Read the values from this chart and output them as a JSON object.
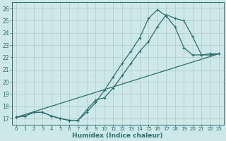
{
  "xlabel": "Humidex (Indice chaleur)",
  "bg_color": "#cce8e8",
  "grid_color": "#c8d8d8",
  "line_color": "#2d6e6e",
  "xlim": [
    -0.5,
    23.5
  ],
  "ylim": [
    16.5,
    26.5
  ],
  "xticks": [
    0,
    1,
    2,
    3,
    4,
    5,
    6,
    7,
    8,
    9,
    10,
    11,
    12,
    13,
    14,
    15,
    16,
    17,
    18,
    19,
    20,
    21,
    22,
    23
  ],
  "yticks": [
    17,
    18,
    19,
    20,
    21,
    22,
    23,
    24,
    25,
    26
  ],
  "line1_x": [
    0,
    1,
    2,
    3,
    4,
    5,
    6,
    7,
    8,
    9,
    10,
    11,
    12,
    13,
    14,
    15,
    16,
    17,
    18,
    19,
    20,
    21,
    22,
    23
  ],
  "line1_y": [
    17.1,
    17.2,
    17.5,
    17.5,
    17.2,
    17.0,
    16.85,
    16.85,
    17.5,
    18.3,
    19.3,
    20.4,
    21.5,
    22.5,
    23.6,
    25.2,
    25.9,
    25.4,
    24.5,
    22.8,
    22.2,
    22.2,
    22.3,
    22.3
  ],
  "line2_x": [
    0,
    1,
    2,
    3,
    4,
    5,
    6,
    7,
    8,
    9,
    10,
    11,
    12,
    13,
    14,
    15,
    16,
    17,
    18,
    19,
    20,
    21,
    22,
    23
  ],
  "line2_y": [
    17.1,
    17.2,
    17.5,
    17.5,
    17.2,
    17.0,
    16.85,
    16.85,
    17.7,
    18.5,
    18.7,
    19.5,
    20.5,
    21.5,
    22.5,
    23.3,
    24.5,
    25.5,
    25.2,
    25.0,
    23.7,
    22.2,
    22.2,
    22.3
  ],
  "line3_x": [
    0,
    23
  ],
  "line3_y": [
    17.1,
    22.3
  ]
}
